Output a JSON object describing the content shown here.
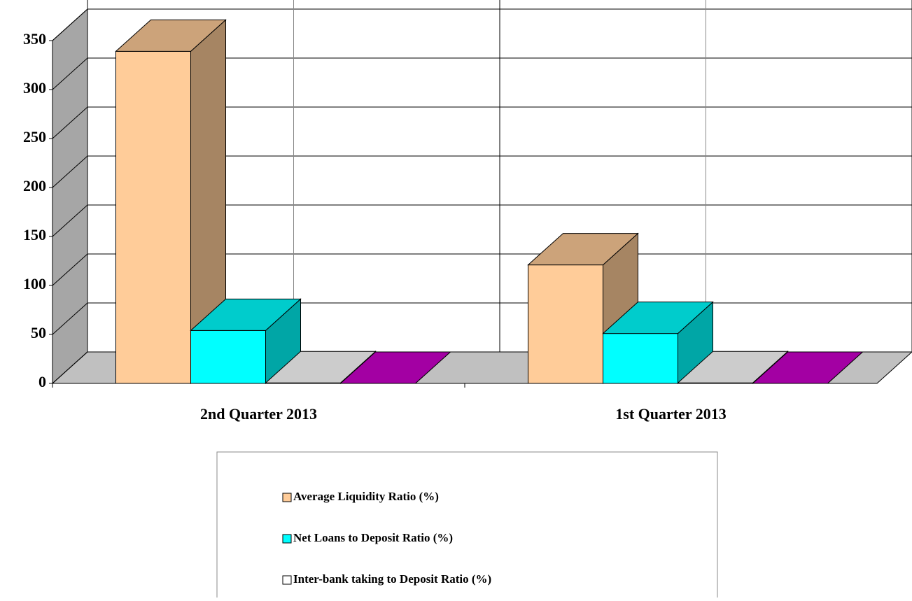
{
  "chart_data": {
    "type": "bar3d",
    "categories": [
      "2nd Quarter 2013",
      "1st Quarter 2013"
    ],
    "series": [
      {
        "name": "Average Liquidity Ratio (%)",
        "color": "#ffcc99",
        "values": [
          339,
          121
        ]
      },
      {
        "name": "Net Loans to Deposit Ratio (%)",
        "color": "#00ffff",
        "values": [
          54,
          51
        ]
      },
      {
        "name": "Inter-bank taking to Deposit Ratio (%)",
        "color": "#ffffff",
        "values": [
          0.5,
          0.5
        ]
      },
      {
        "color": "#cc00cc",
        "values": [
          0,
          0
        ]
      }
    ],
    "ylim": [
      0,
      350
    ],
    "yticks": [
      0,
      50,
      100,
      150,
      200,
      250,
      300,
      350
    ],
    "grid": true
  }
}
